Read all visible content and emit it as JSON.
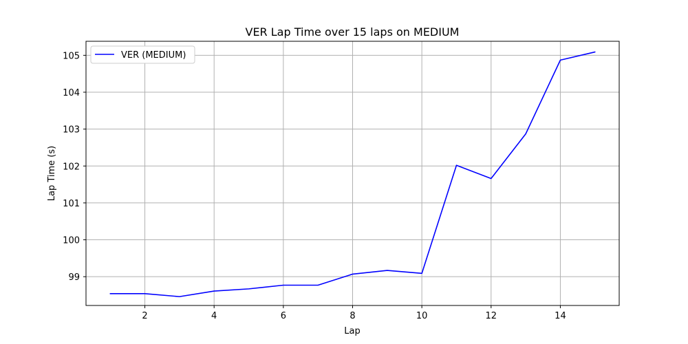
{
  "chart_data": {
    "type": "line",
    "title": "VER Lap Time over 15 laps on MEDIUM",
    "xlabel": "Lap",
    "ylabel": "Lap Time (s)",
    "xlim": [
      0.3,
      15.7
    ],
    "ylim": [
      98.22,
      105.38
    ],
    "xticks": [
      2,
      4,
      6,
      8,
      10,
      12,
      14
    ],
    "yticks": [
      99,
      100,
      101,
      102,
      103,
      104,
      105
    ],
    "grid": true,
    "legend_position": "top-left",
    "series": [
      {
        "name": "VER (MEDIUM)",
        "color": "#0000ff",
        "x": [
          1,
          2,
          3,
          4,
          5,
          6,
          7,
          8,
          9,
          10,
          11,
          12,
          13,
          14,
          15
        ],
        "y": [
          98.54,
          98.54,
          98.46,
          98.61,
          98.67,
          98.77,
          98.77,
          99.07,
          99.17,
          99.09,
          102.02,
          101.66,
          102.87,
          104.87,
          105.09
        ]
      }
    ]
  }
}
